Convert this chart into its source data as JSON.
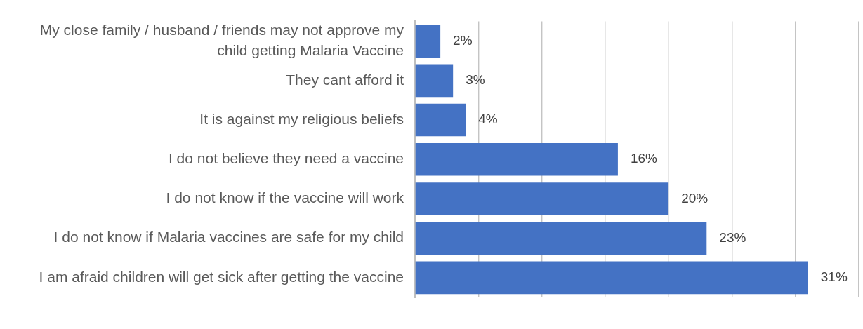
{
  "chart_data": {
    "type": "bar",
    "orientation": "horizontal",
    "categories": [
      "My close family / husband / friends may not approve my child getting Malaria Vaccine",
      "They cant afford it",
      "It is against my religious beliefs",
      "I do not believe they need a vaccine",
      "I do not know if the vaccine will work",
      "I do not know if Malaria vaccines are safe for my child",
      "I am afraid children will get sick after getting the vaccine"
    ],
    "values": [
      2,
      3,
      4,
      16,
      20,
      23,
      31
    ],
    "value_labels": [
      "2%",
      "3%",
      "4%",
      "16%",
      "20%",
      "23%",
      "31%"
    ],
    "color": "#4472c4",
    "xlim": [
      0,
      35
    ],
    "xticks": [
      {
        "value": 0,
        "label": null
      },
      {
        "value": 5,
        "label": null
      },
      {
        "value": 10,
        "label": null
      },
      {
        "value": 15,
        "label": null
      },
      {
        "value": 20,
        "label": null
      },
      {
        "value": 25,
        "label": null
      },
      {
        "value": 30,
        "label": null
      },
      {
        "value": 35,
        "label": null
      }
    ],
    "grid": "x",
    "tick_labels": "y"
  }
}
